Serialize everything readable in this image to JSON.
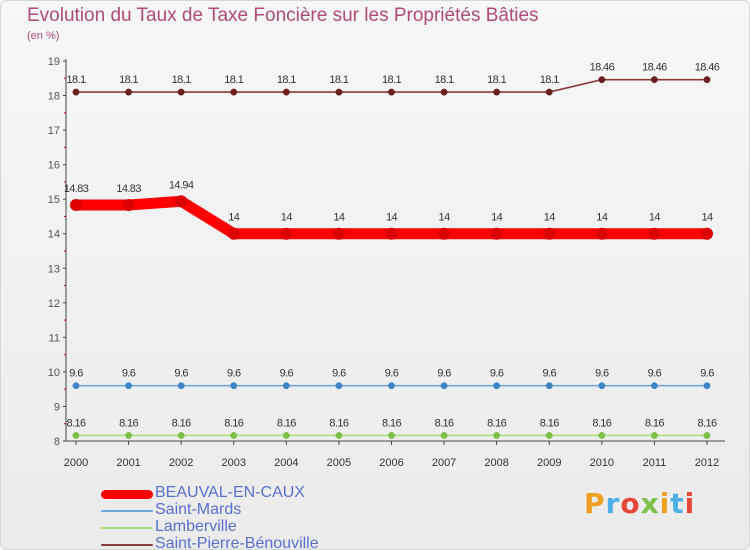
{
  "header": {
    "title": "Evolution du Taux de Taxe Foncière sur les Propriétés Bâties",
    "subtitle": "(en %)"
  },
  "brand": {
    "name": "Proxiti",
    "colors": [
      "#f0a020",
      "#4db0e8",
      "#e8463a",
      "#7cc04a",
      "#f0a020",
      "#4db0e8",
      "#e8463a"
    ]
  },
  "chart_data": {
    "type": "line",
    "title": "Evolution du Taux de Taxe Foncière sur les Propriétés Bâties",
    "ylabel": "(en %)",
    "xlabel": "",
    "categories": [
      "2000",
      "2001",
      "2002",
      "2003",
      "2004",
      "2005",
      "2006",
      "2007",
      "2008",
      "2009",
      "2010",
      "2011",
      "2012"
    ],
    "ylim": [
      8,
      19
    ],
    "yticks": [
      8,
      9,
      10,
      11,
      12,
      13,
      14,
      15,
      16,
      17,
      18,
      19
    ],
    "grid": false,
    "legend": "bottom-left",
    "series": [
      {
        "name": "Saint-Pierre-Bénouville",
        "color": "#8b3a3a",
        "dot": "#6b1f1f",
        "width": "thin",
        "values": [
          18.1,
          18.1,
          18.1,
          18.1,
          18.1,
          18.1,
          18.1,
          18.1,
          18.1,
          18.1,
          18.46,
          18.46,
          18.46
        ],
        "labels": [
          "18.1",
          "18.1",
          "18.1",
          "18.1",
          "18.1",
          "18.1",
          "18.1",
          "18.1",
          "18.1",
          "18.1",
          "18.46",
          "18.46",
          "18.46"
        ]
      },
      {
        "name": "BEAUVAL-EN-CAUX",
        "color": "#ff0000",
        "dot": "#dd0000",
        "width": "thick",
        "values": [
          14.83,
          14.83,
          14.94,
          14,
          14,
          14,
          14,
          14,
          14,
          14,
          14,
          14,
          14
        ],
        "labels": [
          "14.83",
          "14.83",
          "14.94",
          "14",
          "14",
          "14",
          "14",
          "14",
          "14",
          "14",
          "14",
          "14",
          "14"
        ]
      },
      {
        "name": "Saint-Mards",
        "color": "#6fa8dc",
        "dot": "#3d85c6",
        "width": "thin",
        "values": [
          9.6,
          9.6,
          9.6,
          9.6,
          9.6,
          9.6,
          9.6,
          9.6,
          9.6,
          9.6,
          9.6,
          9.6,
          9.6
        ],
        "labels": [
          "9.6",
          "9.6",
          "9.6",
          "9.6",
          "9.6",
          "9.6",
          "9.6",
          "9.6",
          "9.6",
          "9.6",
          "9.6",
          "9.6",
          "9.6"
        ]
      },
      {
        "name": "Lamberville",
        "color": "#a8e07a",
        "dot": "#7cc04a",
        "width": "thin",
        "values": [
          8.16,
          8.16,
          8.16,
          8.16,
          8.16,
          8.16,
          8.16,
          8.16,
          8.16,
          8.16,
          8.16,
          8.16,
          8.16
        ],
        "labels": [
          "8.16",
          "8.16",
          "8.16",
          "8.16",
          "8.16",
          "8.16",
          "8.16",
          "8.16",
          "8.16",
          "8.16",
          "8.16",
          "8.16",
          "8.16"
        ]
      }
    ],
    "legend_order": [
      "BEAUVAL-EN-CAUX",
      "Saint-Mards",
      "Lamberville",
      "Saint-Pierre-Bénouville"
    ]
  }
}
